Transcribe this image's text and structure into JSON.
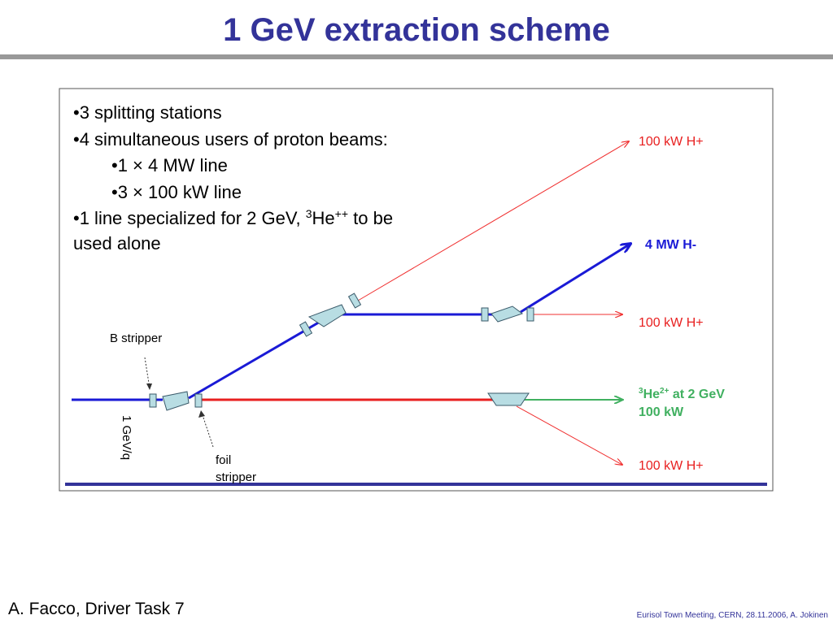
{
  "header": {
    "title": "1 GeV extraction scheme"
  },
  "bullets": {
    "items": [
      "•3 splitting stations",
      "•4 simultaneous users of proton beams:",
      "•1 × 4 MW line",
      "•3 × 100 kW line"
    ],
    "special": {
      "parts": [
        "•1 line specialized for 2 GeV, ",
        "3",
        "He",
        "++",
        " to be"
      ],
      "continuation": "used alone"
    }
  },
  "diagram": {
    "labels": {
      "upper_h_plus": "100 kW H+",
      "h_minus": "4 MW H-",
      "middle_h_plus": "100 kW H+",
      "helium": {
        "parts": [
          "3",
          "He",
          "2+",
          " at 2 GeV"
        ],
        "power": "100 kW"
      },
      "lower_h_plus": "100 kW H+",
      "b_stripper": "B stripper",
      "energy": "1 GeV/q",
      "foil_stripper": [
        "foil",
        "stripper"
      ]
    }
  },
  "footer": {
    "author": "A. Facco, Driver Task 7",
    "event": "Eurisol Town Meeting, CERN, 28.11.2006, A. Jokinen"
  }
}
